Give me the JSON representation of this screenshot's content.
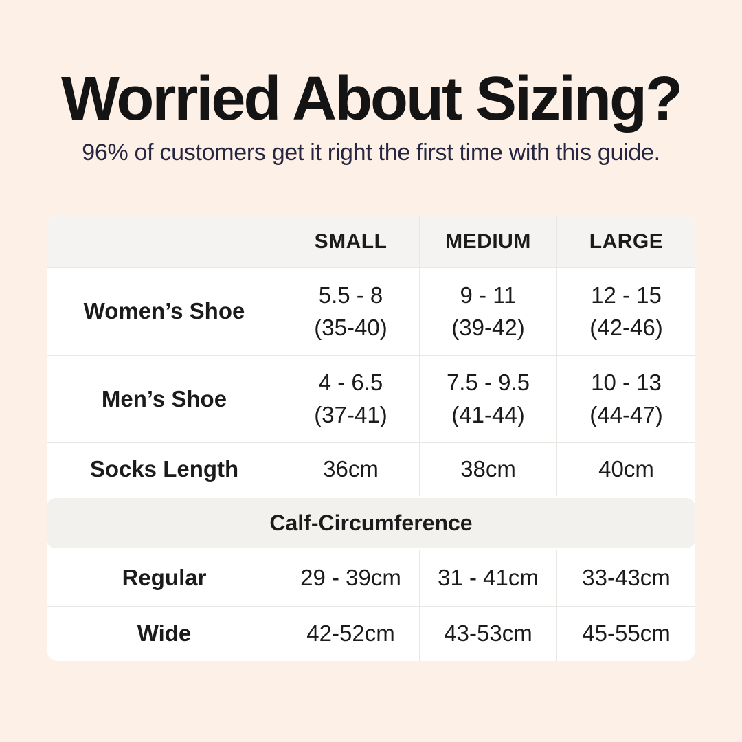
{
  "header": {
    "title": "Worried About Sizing?",
    "subtitle": "96% of customers get it right the first time with this guide."
  },
  "colors": {
    "background": "#fcf0e7",
    "panel": "#ffffff",
    "header_row": "#f4f3f1",
    "section_band": "#f2f1ee",
    "divider": "#e9e7e4",
    "title_text": "#141414",
    "subtitle_text": "#262641"
  },
  "table": {
    "col_headers": {
      "small": "SMALL",
      "medium": "MEDIUM",
      "large": "LARGE"
    },
    "rows": {
      "womens": {
        "label": "Women’s Shoe",
        "small_1": "5.5 - 8",
        "small_2": "(35-40)",
        "medium_1": "9 - 11",
        "medium_2": "(39-42)",
        "large_1": "12 - 15",
        "large_2": "(42-46)"
      },
      "mens": {
        "label": "Men’s Shoe",
        "small_1": "4 - 6.5",
        "small_2": "(37-41)",
        "medium_1": "7.5 - 9.5",
        "medium_2": "(41-44)",
        "large_1": "10 - 13",
        "large_2": "(44-47)"
      },
      "socks": {
        "label": "Socks Length",
        "small": "36cm",
        "medium": "38cm",
        "large": "40cm"
      },
      "regular": {
        "label": "Regular",
        "small": "29 - 39cm",
        "medium": "31 - 41cm",
        "large": "33-43cm"
      },
      "wide": {
        "label": "Wide",
        "small": "42-52cm",
        "medium": "43-53cm",
        "large": "45-55cm"
      }
    },
    "section_header": "Calf-Circumference"
  },
  "chart_data": {
    "type": "table",
    "title": "Worried About Sizing?",
    "subtitle": "96% of customers get it right the first time with this guide.",
    "columns": [
      "",
      "SMALL",
      "MEDIUM",
      "LARGE"
    ],
    "rows": [
      [
        "Women’s Shoe",
        "5.5 - 8 (35-40)",
        "9 - 11 (39-42)",
        "12 - 15 (42-46)"
      ],
      [
        "Men’s Shoe",
        "4 - 6.5 (37-41)",
        "7.5 - 9.5 (41-44)",
        "10 - 13 (44-47)"
      ],
      [
        "Socks Length",
        "36cm",
        "38cm",
        "40cm"
      ],
      [
        "Calf-Circumference",
        "",
        "",
        ""
      ],
      [
        "Regular",
        "29 - 39cm",
        "31 - 41cm",
        "33-43cm"
      ],
      [
        "Wide",
        "42-52cm",
        "43-53cm",
        "45-55cm"
      ]
    ]
  }
}
